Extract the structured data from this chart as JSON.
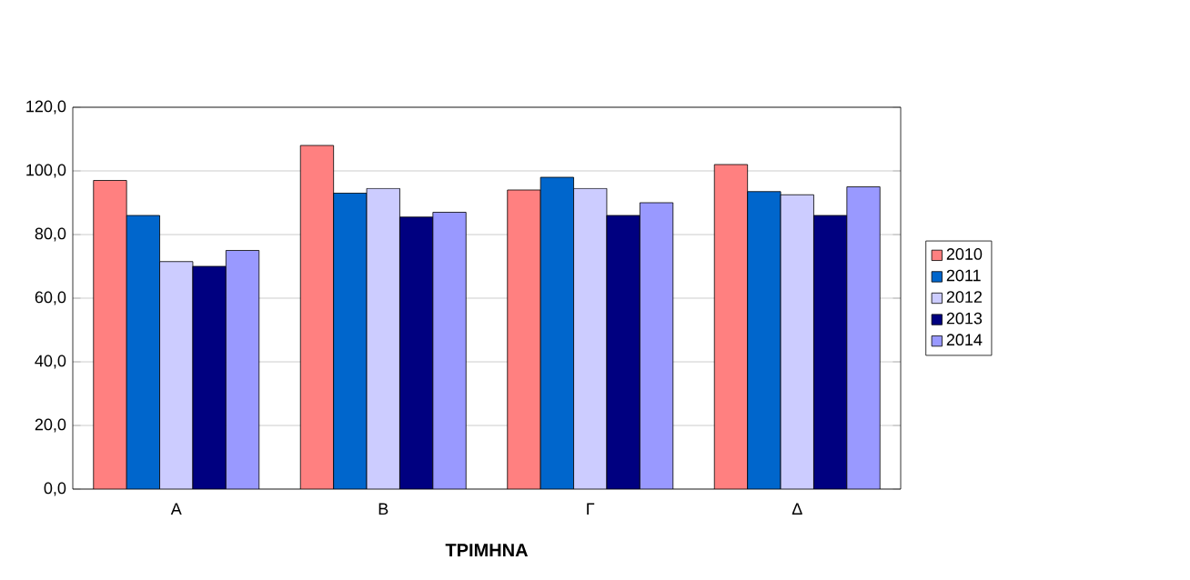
{
  "chart_data": {
    "type": "bar",
    "xlabel": "ΤΡΙΜΗΝΑ",
    "categories": [
      "Α",
      "Β",
      "Γ",
      "Δ"
    ],
    "series": [
      {
        "name": "2010",
        "color": "#ff8080",
        "values": [
          97,
          108,
          94,
          102
        ]
      },
      {
        "name": "2011",
        "color": "#0066cc",
        "values": [
          86,
          93,
          98,
          93.5
        ]
      },
      {
        "name": "2012",
        "color": "#ccccff",
        "values": [
          71.5,
          94.5,
          94.5,
          92.5
        ]
      },
      {
        "name": "2013",
        "color": "#000080",
        "values": [
          70,
          85.5,
          86,
          86
        ]
      },
      {
        "name": "2014",
        "color": "#9999ff",
        "values": [
          75,
          87,
          90,
          95
        ]
      }
    ],
    "ylim": [
      0,
      120
    ],
    "yticks": [
      {
        "value": 0,
        "label": "0,0"
      },
      {
        "value": 20,
        "label": "20,0"
      },
      {
        "value": 40,
        "label": "40,0"
      },
      {
        "value": 60,
        "label": "60,0"
      },
      {
        "value": 80,
        "label": "80,0"
      },
      {
        "value": 100,
        "label": "100,0"
      },
      {
        "value": 120,
        "label": "120,0"
      }
    ],
    "grid": "y",
    "legend": "right"
  }
}
